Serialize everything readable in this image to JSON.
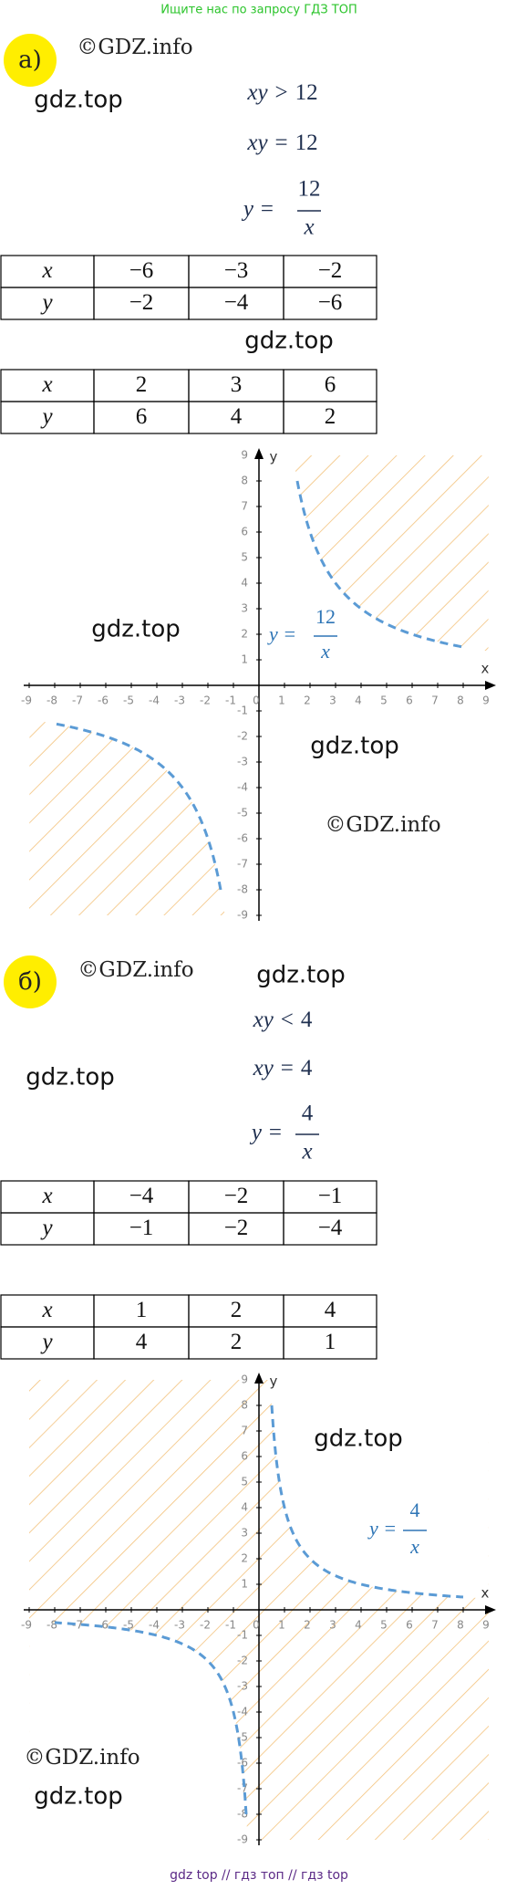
{
  "header": "Ищите нас по запросу ГДЗ ТОП",
  "footer": "gdz top // гдз топ // гдз top",
  "parts": [
    {
      "label": "а)",
      "inequality": {
        "left": "xy",
        "sign": ">",
        "right": 12
      },
      "equation": {
        "left": "xy",
        "sign": "=",
        "right": 12
      },
      "fraction": {
        "left": "y =",
        "numerator": 12,
        "denominator": "x"
      },
      "tables": [
        {
          "rows": [
            [
              "x",
              "−6",
              "−3",
              "−2"
            ],
            [
              "y",
              "−2",
              "−4",
              "−6"
            ]
          ]
        },
        {
          "rows": [
            [
              "x",
              "2",
              "3",
              "6"
            ],
            [
              "y",
              "6",
              "4",
              "2"
            ]
          ]
        }
      ],
      "graph": {
        "xlim": [
          -9,
          9
        ],
        "ylim": [
          -9,
          9
        ],
        "xticks": [
          -9,
          -8,
          -7,
          -6,
          -5,
          -4,
          -3,
          -2,
          -1,
          0,
          1,
          2,
          3,
          4,
          5,
          6,
          7,
          8,
          9
        ],
        "yticks": [
          -9,
          -8,
          -7,
          -6,
          -5,
          -4,
          -3,
          -2,
          -1,
          1,
          2,
          3,
          4,
          5,
          6,
          7,
          8,
          9
        ],
        "x_label": "x",
        "y_label": "y",
        "curve_color": "#5b9bd5",
        "hatch_color": "#f3c27c"
      },
      "watermarks": [
        "©GDZ.info",
        "gdz.top",
        "gdz.top",
        "gdz.top",
        "gdz.top",
        "©GDZ.info"
      ]
    },
    {
      "label": "б)",
      "inequality": {
        "left": "xy",
        "sign": "<",
        "right": 4
      },
      "equation": {
        "left": "xy",
        "sign": "=",
        "right": 4
      },
      "fraction": {
        "left": "y =",
        "numerator": 4,
        "denominator": "x"
      },
      "tables": [
        {
          "rows": [
            [
              "x",
              "−4",
              "−2",
              "−1"
            ],
            [
              "y",
              "−1",
              "−2",
              "−4"
            ]
          ]
        },
        {
          "rows": [
            [
              "x",
              "1",
              "2",
              "4"
            ],
            [
              "y",
              "4",
              "2",
              "1"
            ]
          ]
        }
      ],
      "graph": {
        "xlim": [
          -9,
          9
        ],
        "ylim": [
          -9,
          9
        ],
        "xticks": [
          -9,
          -8,
          -7,
          -6,
          -5,
          -4,
          -3,
          -2,
          -1,
          0,
          1,
          2,
          3,
          4,
          5,
          6,
          7,
          8,
          9
        ],
        "yticks": [
          -9,
          -8,
          -7,
          -6,
          -5,
          -4,
          -3,
          -2,
          -1,
          1,
          2,
          3,
          4,
          5,
          6,
          7,
          8,
          9
        ],
        "x_label": "x",
        "y_label": "y",
        "curve_color": "#5b9bd5",
        "hatch_color": "#f3c27c"
      },
      "watermarks": [
        "©GDZ.info",
        "gdz.top",
        "gdz.top",
        "gdz.top",
        "©GDZ.info",
        "gdz.top"
      ]
    }
  ]
}
